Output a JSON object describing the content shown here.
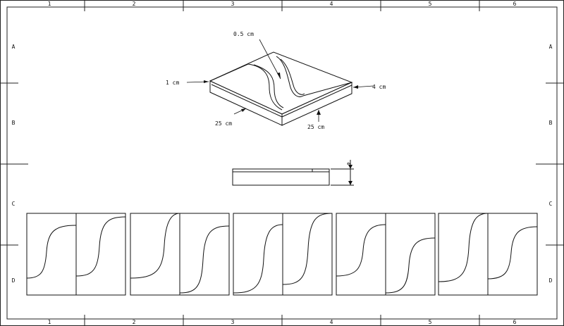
{
  "border": {
    "columns": [
      "1",
      "2",
      "3",
      "4",
      "5",
      "6"
    ],
    "rows": [
      "A",
      "B",
      "C",
      "D"
    ]
  },
  "isometric": {
    "callouts": {
      "groove_width": "0.5 cm",
      "base_thickness": "1 cm",
      "total_height": "4 cm",
      "length_left": "25 cm",
      "length_right": "25 cm"
    }
  },
  "side_view": {
    "dimension": "4"
  },
  "profiles": {
    "count": 6,
    "description_colors": {
      "line": "#111111",
      "paper": "#ffffff"
    }
  }
}
